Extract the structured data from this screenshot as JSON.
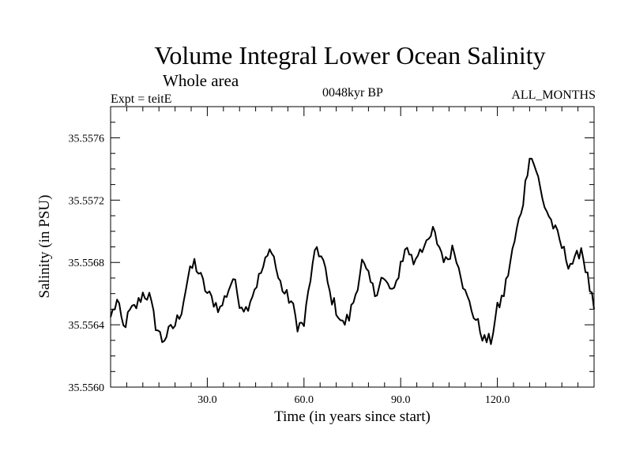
{
  "header": {
    "title": "Volume Integral Lower Ocean Salinity",
    "subtitle": "Whole area",
    "experiment": "Expt = teitE",
    "period": "0048kyr BP",
    "months": "ALL_MONTHS"
  },
  "chart_data": {
    "type": "line",
    "title": "Volume Integral Lower Ocean Salinity",
    "xlabel": "Time (in years since start)",
    "ylabel": "Salinity (in PSU)",
    "xlim": [
      0,
      150
    ],
    "ylim": [
      35.556,
      35.5578
    ],
    "x_ticks": [
      30,
      60,
      90,
      120
    ],
    "x_tick_labels": [
      "30.0",
      "60.0",
      "90.0",
      "120.0"
    ],
    "y_ticks": [
      35.556,
      35.5564,
      35.5568,
      35.5572,
      35.5576
    ],
    "y_tick_labels": [
      "35.5560",
      "35.5564",
      "35.5568",
      "35.5572",
      "35.5576"
    ],
    "grid": false,
    "series": [
      {
        "name": "Salinity",
        "color": "#000000",
        "x": [
          0,
          2,
          4,
          6,
          8,
          10,
          12,
          14,
          16,
          18,
          20,
          22,
          24,
          26,
          28,
          30,
          32,
          34,
          36,
          38,
          40,
          42,
          44,
          46,
          48,
          50,
          52,
          54,
          56,
          58,
          60,
          62,
          64,
          66,
          68,
          70,
          72,
          74,
          76,
          78,
          80,
          82,
          84,
          86,
          88,
          90,
          92,
          94,
          96,
          98,
          100,
          102,
          104,
          106,
          108,
          110,
          112,
          114,
          116,
          118,
          120,
          122,
          124,
          126,
          128,
          130,
          132,
          134,
          136,
          138,
          140,
          142,
          144,
          146,
          148,
          150
        ],
        "values": [
          35.55645,
          35.55655,
          35.55638,
          35.55648,
          35.55652,
          35.5566,
          35.55658,
          35.5564,
          35.5563,
          35.55635,
          35.5564,
          35.5565,
          35.5567,
          35.5568,
          35.5567,
          35.5566,
          35.55655,
          35.5565,
          35.5566,
          35.5567,
          35.55655,
          35.5565,
          35.5566,
          35.5567,
          35.5568,
          35.5569,
          35.5567,
          35.5566,
          35.55655,
          35.5564,
          35.5564,
          35.5567,
          35.5569,
          35.5568,
          35.5566,
          35.5565,
          35.5564,
          35.55645,
          35.5566,
          35.5568,
          35.5567,
          35.5566,
          35.5567,
          35.55665,
          35.5566,
          35.5568,
          35.5569,
          35.5568,
          35.5569,
          35.5569,
          35.557,
          35.5569,
          35.5568,
          35.5569,
          35.5568,
          35.5566,
          35.5565,
          35.5564,
          35.5563,
          35.5563,
          35.5565,
          35.5566,
          35.5568,
          35.557,
          35.5572,
          35.5575,
          35.5574,
          35.5572,
          35.5571,
          35.557,
          35.5569,
          35.5568,
          35.5568,
          35.5569,
          35.5567,
          35.5565
        ]
      }
    ]
  }
}
